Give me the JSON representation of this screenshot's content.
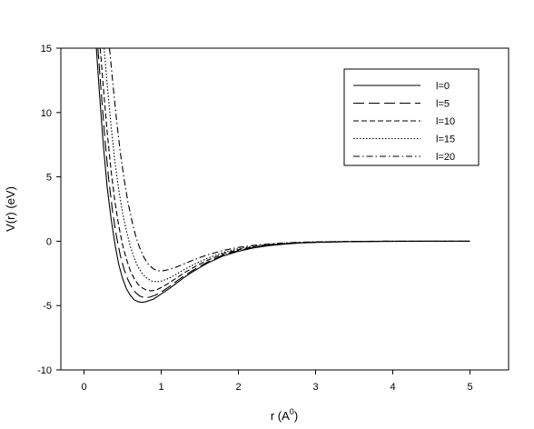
{
  "chart_data": {
    "type": "line",
    "title": "",
    "xlabel": "r (A",
    "xlabel_superscript": "0",
    "xlabel_suffix": ")",
    "ylabel": "V(r) (eV)",
    "xlim": [
      -0.3,
      5.5
    ],
    "ylim": [
      -10,
      15
    ],
    "x_ticks": [
      0,
      1,
      2,
      3,
      4,
      5
    ],
    "y_ticks": [
      -10,
      -5,
      0,
      5,
      10,
      15
    ],
    "grid": false,
    "legend_position": "top-right",
    "series": [
      {
        "name": "l=0",
        "dash": "solid",
        "points": [
          [
            0.16,
            15
          ],
          [
            0.2,
            11.5
          ],
          [
            0.25,
            7.5
          ],
          [
            0.3,
            4.2
          ],
          [
            0.35,
            1.8
          ],
          [
            0.4,
            -0.2
          ],
          [
            0.45,
            -1.8
          ],
          [
            0.5,
            -2.9
          ],
          [
            0.55,
            -3.7
          ],
          [
            0.6,
            -4.2
          ],
          [
            0.65,
            -4.55
          ],
          [
            0.7,
            -4.7
          ],
          [
            0.75,
            -4.75
          ],
          [
            0.8,
            -4.7
          ],
          [
            0.9,
            -4.5
          ],
          [
            1.0,
            -4.1
          ],
          [
            1.1,
            -3.7
          ],
          [
            1.2,
            -3.25
          ],
          [
            1.3,
            -2.8
          ],
          [
            1.4,
            -2.4
          ],
          [
            1.5,
            -2.05
          ],
          [
            1.6,
            -1.7
          ],
          [
            1.8,
            -1.15
          ],
          [
            2.0,
            -0.78
          ],
          [
            2.2,
            -0.52
          ],
          [
            2.4,
            -0.34
          ],
          [
            2.6,
            -0.22
          ],
          [
            2.8,
            -0.14
          ],
          [
            3.0,
            -0.09
          ],
          [
            3.5,
            -0.03
          ],
          [
            4.0,
            -0.01
          ],
          [
            4.5,
            0
          ],
          [
            5.0,
            0
          ]
        ]
      },
      {
        "name": "l=5",
        "dash": "long-dash",
        "points": [
          [
            0.18,
            15
          ],
          [
            0.22,
            11.8
          ],
          [
            0.27,
            8.0
          ],
          [
            0.32,
            4.8
          ],
          [
            0.37,
            2.3
          ],
          [
            0.42,
            0.4
          ],
          [
            0.47,
            -1.1
          ],
          [
            0.52,
            -2.2
          ],
          [
            0.57,
            -3.0
          ],
          [
            0.62,
            -3.6
          ],
          [
            0.67,
            -4.0
          ],
          [
            0.72,
            -4.25
          ],
          [
            0.78,
            -4.38
          ],
          [
            0.85,
            -4.35
          ],
          [
            0.92,
            -4.2
          ],
          [
            1.0,
            -3.95
          ],
          [
            1.1,
            -3.55
          ],
          [
            1.2,
            -3.1
          ],
          [
            1.3,
            -2.68
          ],
          [
            1.4,
            -2.3
          ],
          [
            1.5,
            -1.95
          ],
          [
            1.6,
            -1.62
          ],
          [
            1.8,
            -1.08
          ],
          [
            2.0,
            -0.72
          ],
          [
            2.2,
            -0.48
          ],
          [
            2.4,
            -0.31
          ],
          [
            2.6,
            -0.2
          ],
          [
            2.8,
            -0.13
          ],
          [
            3.0,
            -0.08
          ],
          [
            3.5,
            -0.02
          ],
          [
            4.0,
            0
          ],
          [
            4.5,
            0
          ],
          [
            5.0,
            0
          ]
        ]
      },
      {
        "name": "l=10",
        "dash": "medium-dash",
        "points": [
          [
            0.21,
            15
          ],
          [
            0.25,
            12.0
          ],
          [
            0.3,
            8.5
          ],
          [
            0.35,
            5.5
          ],
          [
            0.4,
            3.1
          ],
          [
            0.45,
            1.2
          ],
          [
            0.5,
            -0.3
          ],
          [
            0.55,
            -1.4
          ],
          [
            0.6,
            -2.3
          ],
          [
            0.65,
            -2.9
          ],
          [
            0.7,
            -3.35
          ],
          [
            0.76,
            -3.65
          ],
          [
            0.82,
            -3.82
          ],
          [
            0.88,
            -3.85
          ],
          [
            0.95,
            -3.75
          ],
          [
            1.0,
            -3.6
          ],
          [
            1.1,
            -3.25
          ],
          [
            1.2,
            -2.85
          ],
          [
            1.3,
            -2.45
          ],
          [
            1.4,
            -2.1
          ],
          [
            1.5,
            -1.78
          ],
          [
            1.6,
            -1.48
          ],
          [
            1.8,
            -0.98
          ],
          [
            2.0,
            -0.65
          ],
          [
            2.2,
            -0.43
          ],
          [
            2.4,
            -0.28
          ],
          [
            2.6,
            -0.18
          ],
          [
            2.8,
            -0.11
          ],
          [
            3.0,
            -0.07
          ],
          [
            3.5,
            -0.02
          ],
          [
            4.0,
            0
          ],
          [
            4.5,
            0
          ],
          [
            5.0,
            0
          ]
        ]
      },
      {
        "name": "l=15",
        "dash": "dotted",
        "points": [
          [
            0.26,
            15
          ],
          [
            0.3,
            12.2
          ],
          [
            0.35,
            9.0
          ],
          [
            0.4,
            6.2
          ],
          [
            0.45,
            4.0
          ],
          [
            0.5,
            2.2
          ],
          [
            0.55,
            0.8
          ],
          [
            0.6,
            -0.4
          ],
          [
            0.65,
            -1.3
          ],
          [
            0.7,
            -2.0
          ],
          [
            0.76,
            -2.55
          ],
          [
            0.82,
            -2.9
          ],
          [
            0.88,
            -3.1
          ],
          [
            0.95,
            -3.15
          ],
          [
            1.0,
            -3.1
          ],
          [
            1.1,
            -2.88
          ],
          [
            1.2,
            -2.55
          ],
          [
            1.3,
            -2.2
          ],
          [
            1.4,
            -1.88
          ],
          [
            1.5,
            -1.58
          ],
          [
            1.6,
            -1.32
          ],
          [
            1.8,
            -0.88
          ],
          [
            2.0,
            -0.58
          ],
          [
            2.2,
            -0.38
          ],
          [
            2.4,
            -0.25
          ],
          [
            2.6,
            -0.16
          ],
          [
            2.8,
            -0.1
          ],
          [
            3.0,
            -0.06
          ],
          [
            3.5,
            -0.02
          ],
          [
            4.0,
            0
          ],
          [
            4.5,
            0
          ],
          [
            5.0,
            0
          ]
        ]
      },
      {
        "name": "l=20",
        "dash": "dash-dot",
        "points": [
          [
            0.33,
            15
          ],
          [
            0.37,
            12.5
          ],
          [
            0.42,
            9.5
          ],
          [
            0.47,
            6.9
          ],
          [
            0.52,
            4.8
          ],
          [
            0.57,
            3.0
          ],
          [
            0.62,
            1.6
          ],
          [
            0.67,
            0.4
          ],
          [
            0.72,
            -0.5
          ],
          [
            0.78,
            -1.3
          ],
          [
            0.84,
            -1.85
          ],
          [
            0.9,
            -2.15
          ],
          [
            0.96,
            -2.3
          ],
          [
            1.02,
            -2.3
          ],
          [
            1.1,
            -2.2
          ],
          [
            1.2,
            -2.0
          ],
          [
            1.3,
            -1.75
          ],
          [
            1.4,
            -1.5
          ],
          [
            1.5,
            -1.27
          ],
          [
            1.6,
            -1.06
          ],
          [
            1.8,
            -0.72
          ],
          [
            2.0,
            -0.48
          ],
          [
            2.2,
            -0.32
          ],
          [
            2.4,
            -0.21
          ],
          [
            2.6,
            -0.13
          ],
          [
            2.8,
            -0.08
          ],
          [
            3.0,
            -0.05
          ],
          [
            3.5,
            -0.01
          ],
          [
            4.0,
            0
          ],
          [
            4.5,
            0
          ],
          [
            5.0,
            0
          ]
        ]
      }
    ]
  }
}
